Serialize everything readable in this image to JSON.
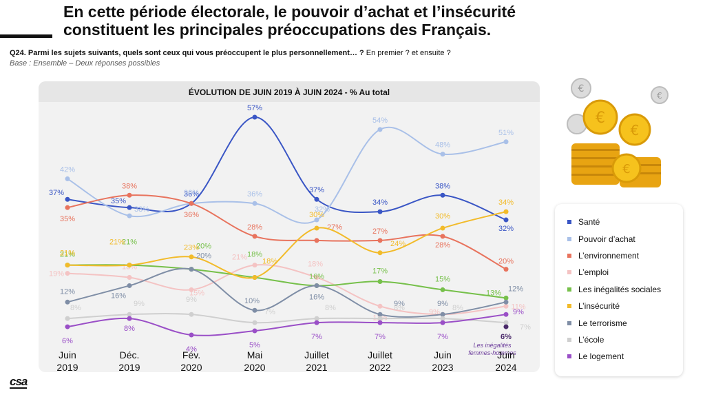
{
  "header": {
    "title_line1": "En cette période électorale, le pouvoir d’achat et l’insécurité",
    "title_line2": "constituent les principales préoccupations des Français.",
    "question_code": "Q24.",
    "question_text": "Parmi les sujets suivants, quels sont ceux qui vous préoccupent le plus personnellement… ?",
    "question_suffix": "En premier ? et ensuite ?",
    "base": "Base : Ensemble – Deux réponses possibles"
  },
  "logo": "csa",
  "chart_data": {
    "type": "line",
    "title": "ÉVOLUTION DE JUIN 2019 À JUIN 2024 - % Au total",
    "categories": [
      [
        "Juin",
        "2019"
      ],
      [
        "Déc.",
        "2019"
      ],
      [
        "Fév.",
        "2020"
      ],
      [
        "Mai",
        "2020"
      ],
      [
        "Juillet",
        "2021"
      ],
      [
        "Juillet",
        "2022"
      ],
      [
        "Juin",
        "2023"
      ],
      [
        "Juin",
        "2024"
      ]
    ],
    "ylim": [
      0,
      60
    ],
    "grid": false,
    "legend_position": "right",
    "unit": "%",
    "series": [
      {
        "name": "Santé",
        "color": "#3a56c5",
        "values": [
          37,
          35,
          36,
          57,
          37,
          34,
          38,
          32
        ],
        "labels": [
          "37%",
          "35%",
          "36%",
          "57%",
          "37%",
          "34%",
          "38%",
          "32%"
        ]
      },
      {
        "name": "Pouvoir d’achat",
        "color": "#a9c0e8",
        "values": [
          42,
          33,
          36,
          36,
          32,
          54,
          48,
          51
        ],
        "labels": [
          "42%",
          "33%",
          "36%",
          "36%",
          "32%",
          "54%",
          "48%",
          "51%"
        ]
      },
      {
        "name": "L’environnement",
        "color": "#e8735d",
        "values": [
          35,
          38,
          36,
          28,
          27,
          27,
          28,
          20
        ],
        "labels": [
          "35%",
          "38%",
          "36%",
          "28%",
          "27%",
          "27%",
          "28%",
          "20%"
        ]
      },
      {
        "name": "L’emploi",
        "color": "#f4c3c3",
        "values": [
          19,
          18,
          15,
          21,
          18,
          11,
          9,
          11
        ],
        "labels": [
          "19%",
          "18%",
          "15%",
          "21%",
          "18%",
          "11%",
          "9%",
          "11%"
        ]
      },
      {
        "name": "Les inégalités sociales",
        "color": "#76c04a",
        "values": [
          21,
          21,
          20,
          18,
          16,
          17,
          15,
          13
        ],
        "labels": [
          "21%",
          "21%",
          "20%",
          "18%",
          "16%",
          "17%",
          "15%",
          "13%"
        ]
      },
      {
        "name": "L’insécurité",
        "color": "#f2bb2a",
        "values": [
          21,
          21,
          23,
          18,
          30,
          24,
          30,
          34
        ],
        "labels": [
          "21%",
          "21%",
          "23%",
          "18%",
          "30%",
          "24%",
          "30%",
          "34%"
        ]
      },
      {
        "name": "Le terrorisme",
        "color": "#7f8ea6",
        "values": [
          12,
          16,
          20,
          10,
          16,
          9,
          9,
          12
        ],
        "labels": [
          "12%",
          "16%",
          "20%",
          "10%",
          "16%",
          "9%",
          "9%",
          "12%"
        ]
      },
      {
        "name": "L’école",
        "color": "#cfcfcf",
        "values": [
          8,
          9,
          9,
          7,
          8,
          8,
          8,
          7
        ],
        "labels": [
          "8%",
          "9%",
          "9%",
          "7%",
          "8%",
          "8%",
          "8%",
          "7%"
        ]
      },
      {
        "name": "Le logement",
        "color": "#9a4fc7",
        "values": [
          6,
          8,
          4,
          5,
          7,
          7,
          7,
          9
        ],
        "labels": [
          "6%",
          "8%",
          "4%",
          "5%",
          "7%",
          "7%",
          "7%",
          "9%"
        ]
      }
    ],
    "extra_point": {
      "name": "Les inégalités femmes-hommes",
      "color": "#4a2a6a",
      "category_index": 7,
      "value": 6,
      "label": "6%",
      "annotation_line1": "Les inégalités",
      "annotation_line2": "femmes-hommes"
    }
  }
}
